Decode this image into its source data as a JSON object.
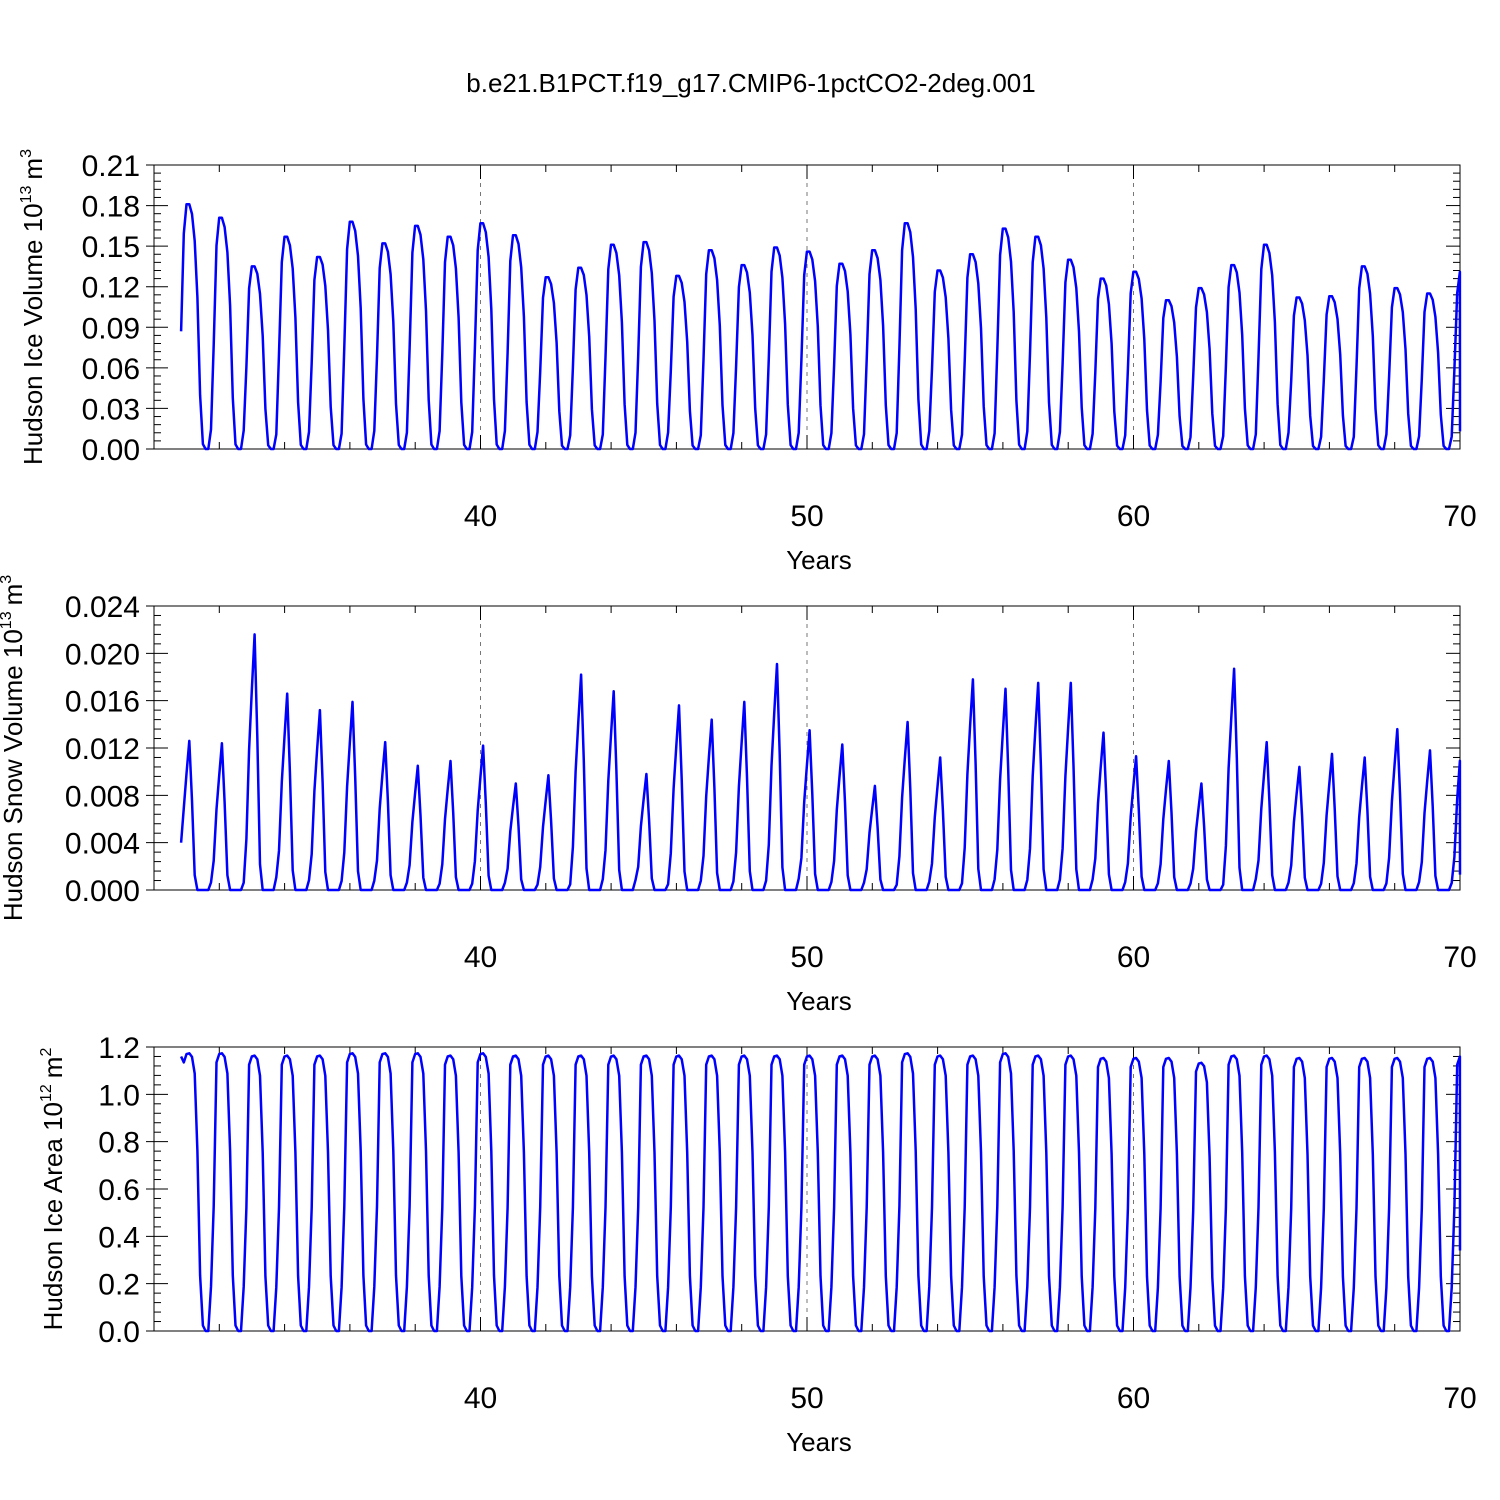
{
  "figure_title": "b.e21.B1PCT.f19_g17.CMIP6-1pctCO2-2deg.001",
  "colors": {
    "series": "#0000ff",
    "grid": "#777777",
    "axes": "#000000"
  },
  "chart_data": [
    {
      "type": "line",
      "title": "",
      "ylabel_text": "Hudson Ice Volume 10",
      "ylabel_exp": "13",
      "ylabel_unit": "m",
      "ylabel_unit_exp": "3",
      "xlabel": "Years",
      "xlim": [
        30,
        70
      ],
      "ylim": [
        0,
        0.21
      ],
      "xticks": [
        40,
        50,
        60,
        70
      ],
      "xtick_labels": [
        "40",
        "50",
        "60",
        "70"
      ],
      "yticks": [
        0,
        0.03,
        0.06,
        0.09,
        0.12,
        0.15,
        0.18,
        0.21
      ],
      "ytick_labels": [
        "0.00",
        "0.03",
        "0.06",
        "0.09",
        "0.12",
        "0.15",
        "0.18",
        "0.21"
      ],
      "grid": "dashed vertical lines at 40, 50, 60",
      "start_year": 30.83,
      "series": [
        {
          "peaks": [
            0.181,
            0.171,
            0.135,
            0.157,
            0.142,
            0.168,
            0.152,
            0.165,
            0.157,
            0.167,
            0.158,
            0.127,
            0.134,
            0.151,
            0.153,
            0.128,
            0.147,
            0.136,
            0.149,
            0.146,
            0.137,
            0.147,
            0.167,
            0.132,
            0.144,
            0.163,
            0.157,
            0.14,
            0.126,
            0.131,
            0.11,
            0.119,
            0.136,
            0.151,
            0.112,
            0.113,
            0.135,
            0.119,
            0.115,
            0.131
          ],
          "last_value": 0.013
        }
      ]
    },
    {
      "type": "line",
      "title": "",
      "ylabel_text": "Hudson Snow Volume 10",
      "ylabel_exp": "13",
      "ylabel_unit": "m",
      "ylabel_unit_exp": "3",
      "xlabel": "Years",
      "xlim": [
        30,
        70
      ],
      "ylim": [
        0,
        0.024
      ],
      "xticks": [
        40,
        50,
        60,
        70
      ],
      "xtick_labels": [
        "40",
        "50",
        "60",
        "70"
      ],
      "yticks": [
        0,
        0.004,
        0.008,
        0.012,
        0.016,
        0.02,
        0.024
      ],
      "ytick_labels": [
        "0.000",
        "0.004",
        "0.008",
        "0.012",
        "0.016",
        "0.020",
        "0.024"
      ],
      "grid": "dashed vertical lines at 40, 50, 60",
      "start_year": 30.83,
      "series": [
        {
          "peaks": [
            0.0126,
            0.0124,
            0.0216,
            0.0166,
            0.0152,
            0.0159,
            0.0125,
            0.0105,
            0.0109,
            0.0122,
            0.009,
            0.0097,
            0.0182,
            0.0168,
            0.0098,
            0.0156,
            0.0144,
            0.0159,
            0.0191,
            0.0135,
            0.0123,
            0.0088,
            0.0142,
            0.0112,
            0.0178,
            0.017,
            0.0175,
            0.0175,
            0.0133,
            0.0113,
            0.0109,
            0.009,
            0.0187,
            0.0125,
            0.0104,
            0.0115,
            0.0112,
            0.0136,
            0.0118,
            0.014
          ],
          "first_value": 0.004,
          "last_value": 0.0013
        }
      ]
    },
    {
      "type": "line",
      "title": "",
      "ylabel_text": "Hudson Ice Area 10",
      "ylabel_exp": "12",
      "ylabel_unit": "m",
      "ylabel_unit_exp": "2",
      "xlabel": "Years",
      "xlim": [
        30,
        70
      ],
      "ylim": [
        0,
        1.2
      ],
      "xticks": [
        40,
        50,
        60,
        70
      ],
      "xtick_labels": [
        "40",
        "50",
        "60",
        "70"
      ],
      "yticks": [
        0,
        0.2,
        0.4,
        0.6,
        0.8,
        1.0,
        1.2
      ],
      "ytick_labels": [
        "0.0",
        "0.2",
        "0.4",
        "0.6",
        "0.8",
        "1.0",
        "1.2"
      ],
      "grid": "dashed vertical lines at 40, 50, 60",
      "start_year": 30.83,
      "series": [
        {
          "peaks": [
            1.17,
            1.17,
            1.16,
            1.16,
            1.16,
            1.17,
            1.17,
            1.17,
            1.16,
            1.17,
            1.16,
            1.16,
            1.16,
            1.16,
            1.16,
            1.16,
            1.16,
            1.16,
            1.16,
            1.16,
            1.16,
            1.16,
            1.17,
            1.16,
            1.16,
            1.17,
            1.16,
            1.16,
            1.15,
            1.15,
            1.15,
            1.13,
            1.16,
            1.16,
            1.15,
            1.15,
            1.15,
            1.15,
            1.15,
            1.16
          ],
          "first_value": 1.16,
          "last_value": 0.34
        }
      ]
    }
  ]
}
